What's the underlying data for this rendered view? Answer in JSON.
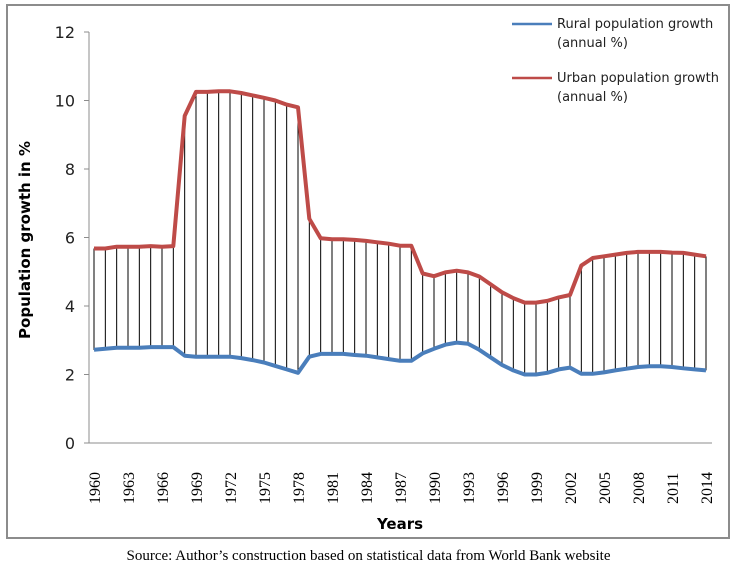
{
  "chart_data": {
    "type": "line",
    "title": "",
    "xlabel": "Years",
    "ylabel": "Population growth in %",
    "ylim": [
      0,
      12
    ],
    "yticks": [
      0,
      2,
      4,
      6,
      8,
      10,
      12
    ],
    "xlim": [
      1960,
      2014
    ],
    "xtick_labels": [
      "1960",
      "1963",
      "1966",
      "1969",
      "1972",
      "1975",
      "1978",
      "1981",
      "1984",
      "1987",
      "1990",
      "1993",
      "1996",
      "1999",
      "2002",
      "2005",
      "2008",
      "2011",
      "2014"
    ],
    "grid": false,
    "legend_position": "top-right",
    "drop_lines": true,
    "x": [
      1960,
      1961,
      1962,
      1963,
      1964,
      1965,
      1966,
      1967,
      1968,
      1969,
      1970,
      1971,
      1972,
      1973,
      1974,
      1975,
      1976,
      1977,
      1978,
      1979,
      1980,
      1981,
      1982,
      1983,
      1984,
      1985,
      1986,
      1987,
      1988,
      1989,
      1990,
      1991,
      1992,
      1993,
      1994,
      1995,
      1996,
      1997,
      1998,
      1999,
      2000,
      2001,
      2002,
      2003,
      2004,
      2005,
      2006,
      2007,
      2008,
      2009,
      2010,
      2011,
      2012,
      2013,
      2014
    ],
    "series": [
      {
        "name": "Rural population growth (annual %)",
        "color": "#4a7ebb",
        "values": [
          2.72,
          2.75,
          2.78,
          2.78,
          2.78,
          2.8,
          2.8,
          2.8,
          2.55,
          2.52,
          2.52,
          2.52,
          2.52,
          2.48,
          2.42,
          2.35,
          2.25,
          2.15,
          2.05,
          2.52,
          2.6,
          2.6,
          2.6,
          2.57,
          2.55,
          2.5,
          2.45,
          2.4,
          2.4,
          2.62,
          2.75,
          2.87,
          2.93,
          2.9,
          2.72,
          2.5,
          2.28,
          2.12,
          2.0,
          2.0,
          2.05,
          2.15,
          2.2,
          2.02,
          2.02,
          2.06,
          2.12,
          2.17,
          2.22,
          2.24,
          2.24,
          2.22,
          2.18,
          2.15,
          2.12
        ]
      },
      {
        "name": "Urban population growth (annual %)",
        "color": "#be4b48",
        "values": [
          5.68,
          5.68,
          5.73,
          5.73,
          5.73,
          5.75,
          5.73,
          5.75,
          9.55,
          10.25,
          10.25,
          10.27,
          10.27,
          10.22,
          10.15,
          10.08,
          10.0,
          9.88,
          9.8,
          6.55,
          5.98,
          5.95,
          5.95,
          5.93,
          5.9,
          5.86,
          5.82,
          5.76,
          5.76,
          4.95,
          4.87,
          4.98,
          5.03,
          4.98,
          4.86,
          4.63,
          4.4,
          4.23,
          4.1,
          4.1,
          4.15,
          4.25,
          4.32,
          5.18,
          5.4,
          5.45,
          5.5,
          5.55,
          5.58,
          5.58,
          5.58,
          5.56,
          5.55,
          5.5,
          5.45
        ]
      }
    ]
  },
  "caption": "Source: Author’s construction based on statistical data from World Bank website",
  "legend": [
    {
      "line1": "Rural population growth",
      "line2": "(annual %)"
    },
    {
      "line1": "Urban population growth",
      "line2": "(annual %)"
    }
  ]
}
